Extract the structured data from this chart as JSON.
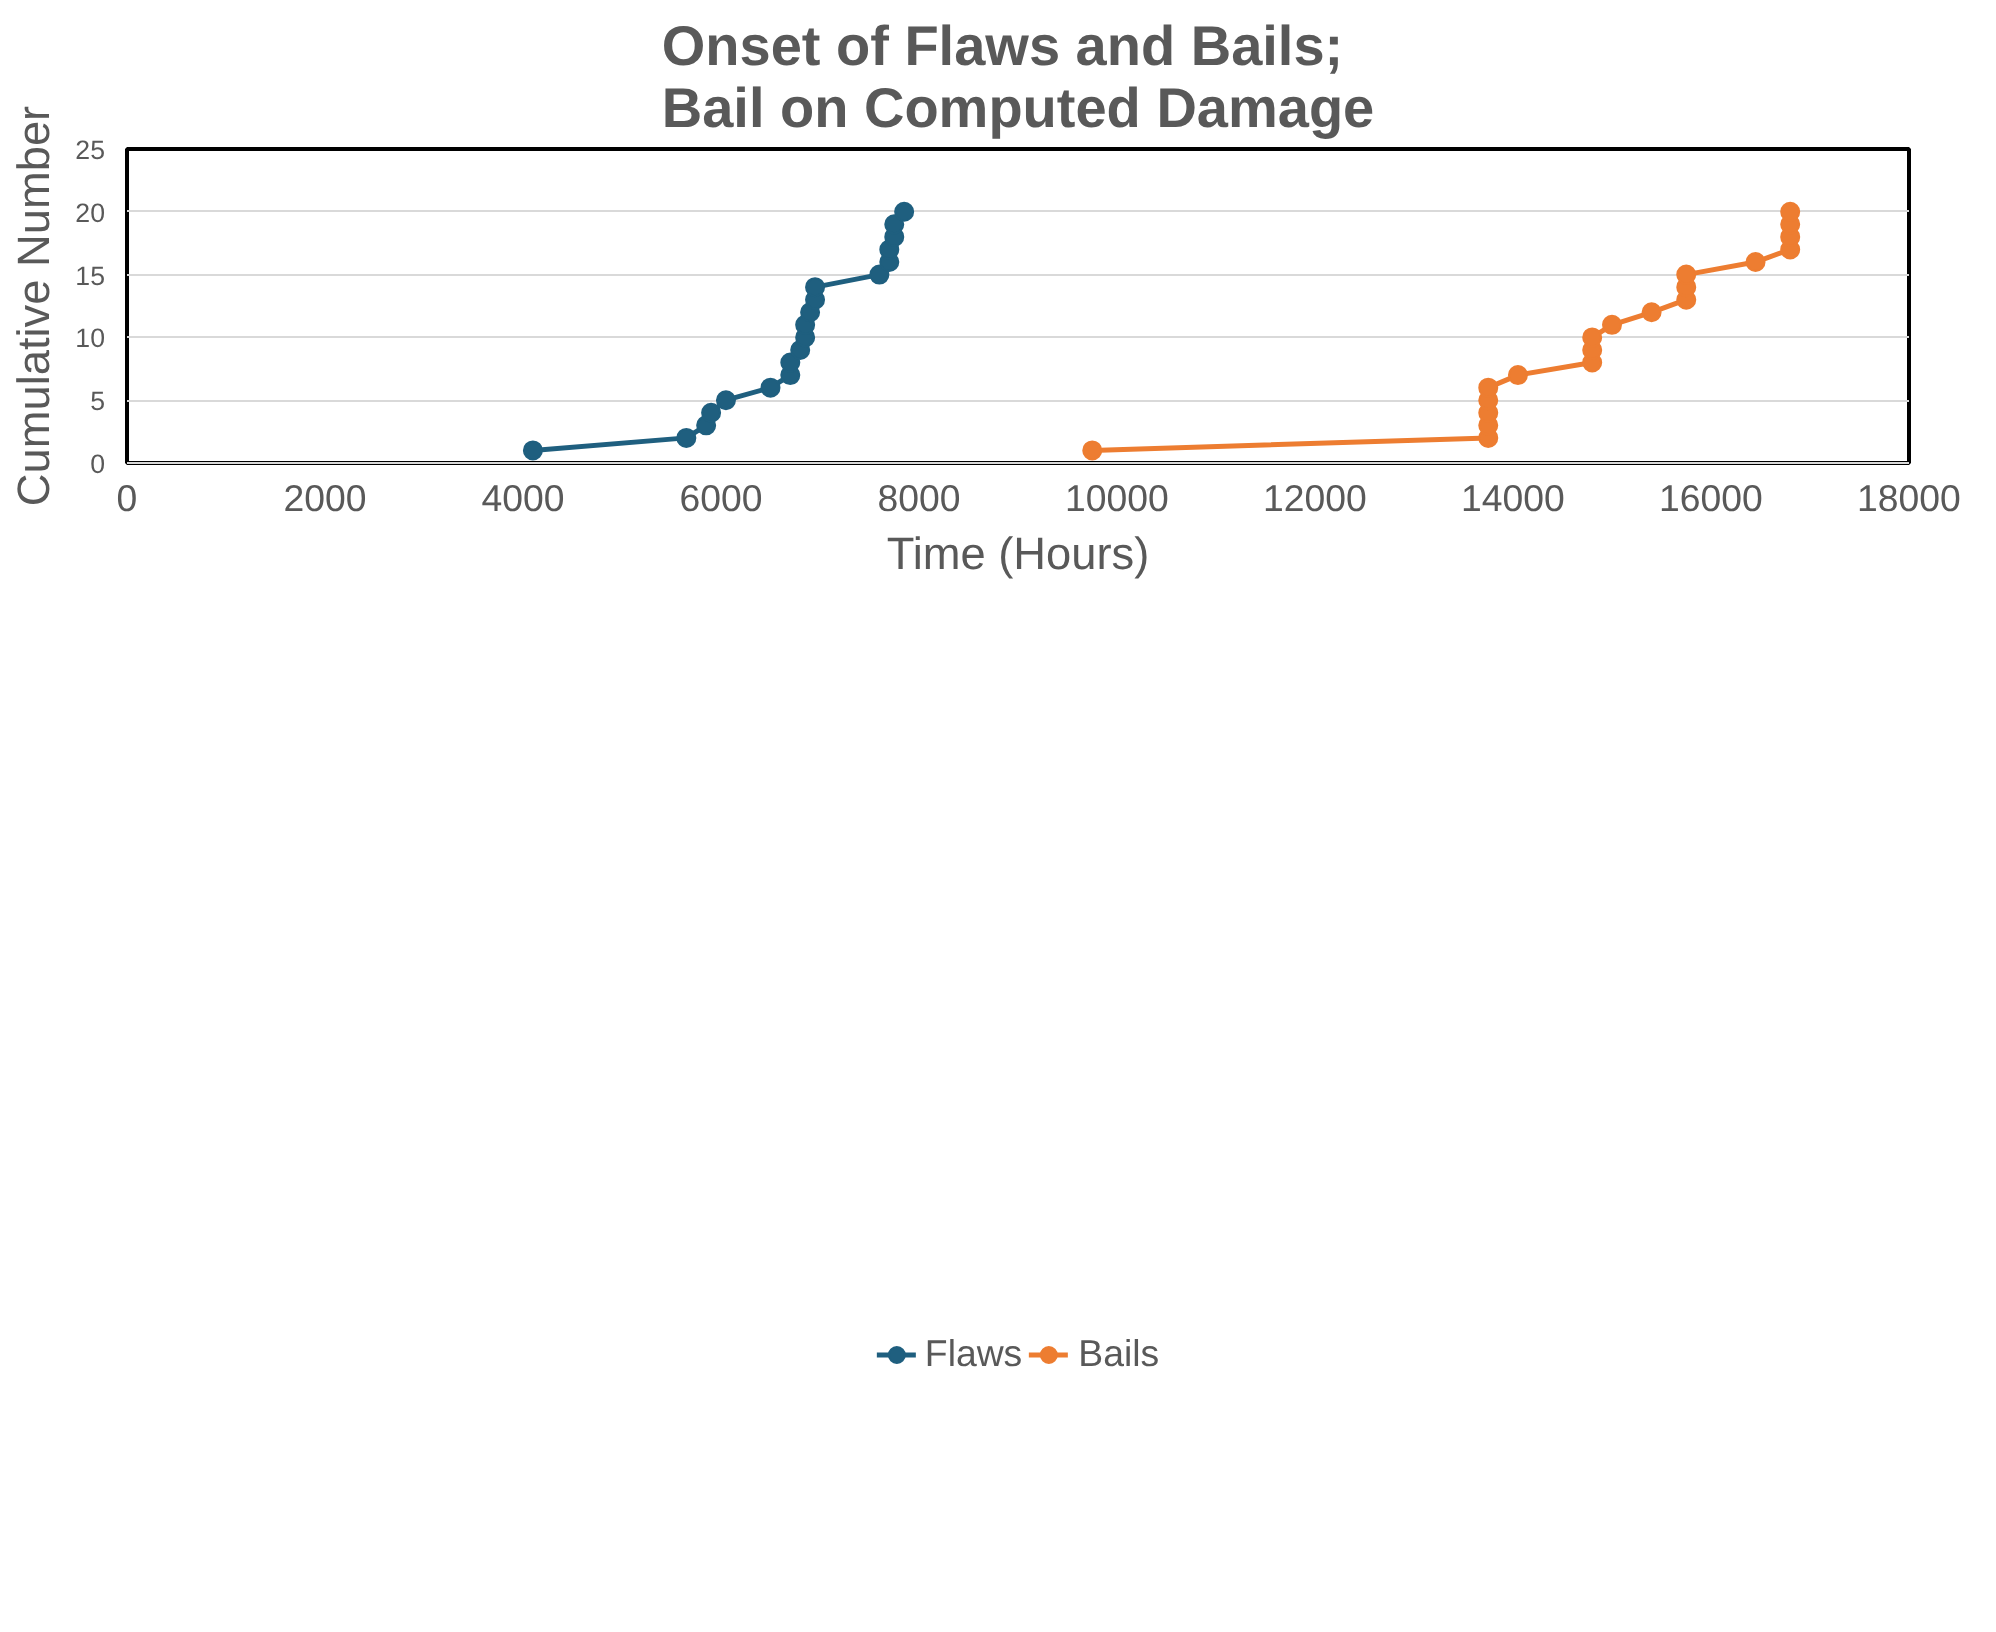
{
  "chart_data": {
    "type": "line",
    "title": "Onset of Flaws and Bails;\nBail on Computed Damage",
    "xlabel": "Time (Hours)",
    "ylabel": "Cumulative Number",
    "xlim": [
      0,
      18000
    ],
    "xticks": [
      0,
      2000,
      4000,
      6000,
      8000,
      10000,
      12000,
      14000,
      16000,
      18000
    ],
    "ylim": [
      0,
      25
    ],
    "yticks": [
      0,
      5,
      10,
      15,
      20,
      25
    ],
    "grid": "y",
    "legend": "bottom",
    "marker": "circle",
    "line_style": "solid",
    "series": [
      {
        "name": "Flaws",
        "color": "#1f5f7f",
        "x": [
          4100,
          5650,
          5850,
          5900,
          6050,
          6500,
          6700,
          6700,
          6800,
          6850,
          6850,
          6900,
          6950,
          6950,
          7600,
          7700,
          7700,
          7750,
          7750,
          7850
        ],
        "values": [
          1,
          2,
          3,
          4,
          5,
          6,
          7,
          8,
          9,
          10,
          11,
          12,
          13,
          14,
          15,
          16,
          17,
          18,
          19,
          20
        ]
      },
      {
        "name": "Bails",
        "color": "#ed7d31",
        "x": [
          9750,
          13750,
          13750,
          13750,
          13750,
          13750,
          14050,
          14800,
          14800,
          14800,
          15000,
          15400,
          15750,
          15750,
          15750,
          16450,
          16800,
          16800,
          16800,
          16800
        ],
        "values": [
          1,
          2,
          3,
          4,
          5,
          6,
          7,
          8,
          9,
          10,
          11,
          12,
          13,
          14,
          15,
          16,
          17,
          18,
          19,
          20
        ]
      }
    ]
  }
}
